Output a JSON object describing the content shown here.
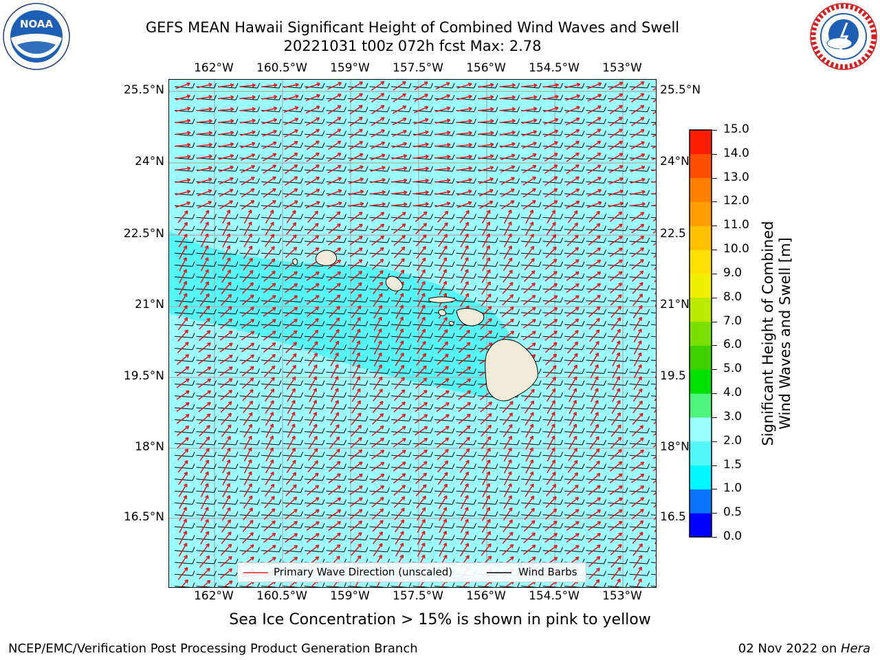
{
  "header": {
    "title_line1": "GEFS MEAN Hawaii Significant Height of Combined Wind Waves and Swell",
    "title_line2": "20221031 t00z 072h fcst   Max: 2.78"
  },
  "logos": {
    "left": {
      "text": "NOAA",
      "icon": "noaa-logo-icon"
    },
    "right": {
      "text": "NATIONAL WEATHER SERVICE",
      "icon": "nws-logo-icon"
    }
  },
  "map": {
    "lon_labels": [
      "162°W",
      "160.5°W",
      "159°W",
      "157.5°W",
      "156°W",
      "154.5°W",
      "153°W"
    ],
    "lat_labels_left": [
      "25.5°N",
      "24°N",
      "22.5°N",
      "21°N",
      "19.5°N",
      "18°N",
      "16.5°N"
    ],
    "lat_labels_right": [
      "25.5°N",
      "24°N",
      "22.5",
      "21°N",
      "19.5",
      "18°N",
      "16.5"
    ],
    "colors": {
      "ocean_base": "#9bfdfd",
      "ocean_light": "#55f6f6",
      "land": "#efebd8",
      "wave_arrow": "#e41a1c",
      "barb": "#000000"
    }
  },
  "legend": {
    "wave_label": "Primary Wave Direction (unscaled)",
    "barb_label": "Wind Barbs"
  },
  "colorbar": {
    "label": "Significant Height of Combined Wind Waves and Swell [m]",
    "label_line1": "Significant Height of Combined",
    "label_line2": "Wind Waves and Swell [m]",
    "ticks": [
      "0.0",
      "0.5",
      "1.0",
      "1.5",
      "2.0",
      "3.0",
      "4.0",
      "5.0",
      "6.0",
      "7.0",
      "8.0",
      "9.0",
      "10.0",
      "11.0",
      "12.0",
      "13.0",
      "14.0",
      "15.0"
    ],
    "colors": [
      "#0000ff",
      "#0a73ff",
      "#00f7ff",
      "#55f6f6",
      "#9bfdfd",
      "#4ff47d",
      "#00e000",
      "#3fd100",
      "#79e000",
      "#bbea00",
      "#f0f000",
      "#ffe000",
      "#ffc000",
      "#ffa000",
      "#ff7f00",
      "#ff4f00",
      "#ff1f00"
    ]
  },
  "caption": "Sea Ice Concentration > 15% is shown in pink to yellow",
  "footer": {
    "left": "NCEP/EMC/Verification Post Processing Product Generation Branch",
    "right_prefix": "02 Nov 2022 on ",
    "right_host": "Hera"
  }
}
